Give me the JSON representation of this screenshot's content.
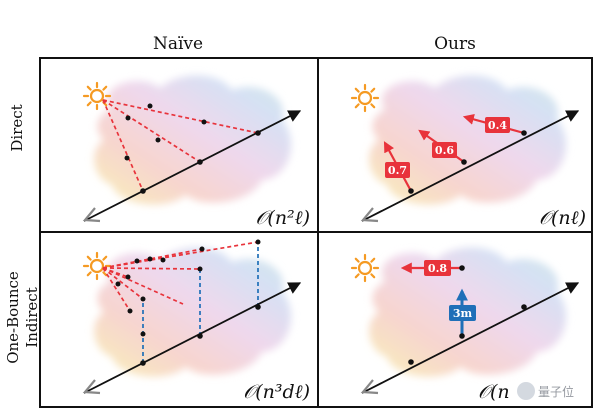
{
  "columns": {
    "naive": "Naïve",
    "ours": "Ours"
  },
  "rows": {
    "direct": "Direct",
    "indirect_line1": "One-Bounce",
    "indirect_line2": "Indirect"
  },
  "complexities": {
    "naive_direct": "𝒪(n²ℓ)",
    "ours_direct": "𝒪(nℓ)",
    "naive_indirect": "𝒪(n³dℓ)",
    "ours_indirect": "𝒪(n"
  },
  "labels": {
    "direct_tags": [
      "0.7",
      "0.6",
      "0.4"
    ],
    "indirect_tag": "0.8",
    "height_tag": "3m"
  },
  "watermark": "量子位",
  "colors": {
    "red": "#e8333b",
    "blue": "#1f6fb8",
    "sun": "#f59a23",
    "grey_arrow": "#888888"
  },
  "icons": {
    "sun": "sun-icon"
  }
}
